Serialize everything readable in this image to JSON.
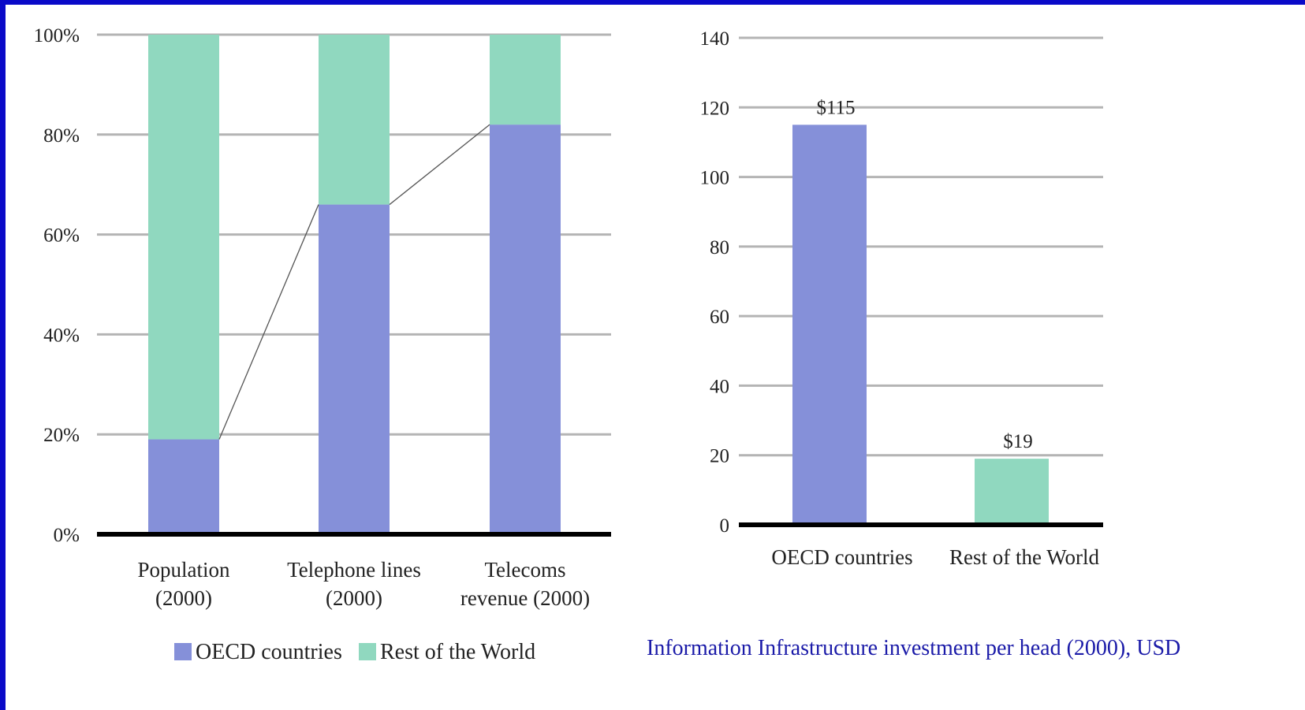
{
  "colors": {
    "oecd": "#8590d9",
    "rest": "#90d8bf",
    "grid": "#b4b4b4",
    "axis": "#000000",
    "frame": "#0a0ac8",
    "caption": "#1a1aa8"
  },
  "chart_data": [
    {
      "type": "bar",
      "stacked": true,
      "categories": [
        [
          "Population",
          "(2000)"
        ],
        [
          "Telephone lines",
          "(2000)"
        ],
        [
          "Telecoms",
          "revenue (2000)"
        ]
      ],
      "series": [
        {
          "name": "OECD countries",
          "values": [
            19,
            66,
            82
          ]
        },
        {
          "name": "Rest of the World",
          "values": [
            81,
            34,
            18
          ]
        }
      ],
      "yticks": [
        "0%",
        "20%",
        "40%",
        "60%",
        "80%",
        "100%"
      ],
      "ylim": [
        0,
        100
      ],
      "grid": true,
      "connector_lines": true,
      "legend": {
        "placement": "bottom",
        "items": [
          "OECD countries",
          "Rest of the World"
        ]
      }
    },
    {
      "type": "bar",
      "categories": [
        "OECD countries",
        "Rest of the World"
      ],
      "values": [
        115,
        19
      ],
      "data_labels": [
        "$115",
        "$19"
      ],
      "yticks": [
        "0",
        "20",
        "40",
        "60",
        "80",
        "100",
        "120",
        "140"
      ],
      "ylim": [
        0,
        140
      ],
      "grid": true,
      "caption": "Information Infrastructure investment per head (2000), USD"
    }
  ]
}
